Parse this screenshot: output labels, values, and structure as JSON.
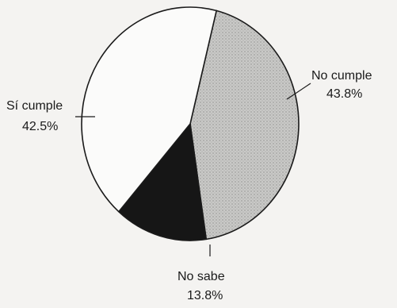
{
  "chart_data": {
    "type": "pie",
    "slices": [
      {
        "label": "No cumple",
        "value": 43.8,
        "value_text": "43.8%",
        "fill": "#c9c9c7"
      },
      {
        "label": "No sabe",
        "value": 13.8,
        "value_text": "13.8%",
        "fill": "#161616"
      },
      {
        "label": "Sí cumple",
        "value": 42.5,
        "value_text": "42.5%",
        "fill": "#fbfbfa"
      }
    ],
    "start_angle_deg": 14,
    "direction": "clockwise",
    "outline_color": "#1a1a1a",
    "background": "#f4f3f1"
  }
}
